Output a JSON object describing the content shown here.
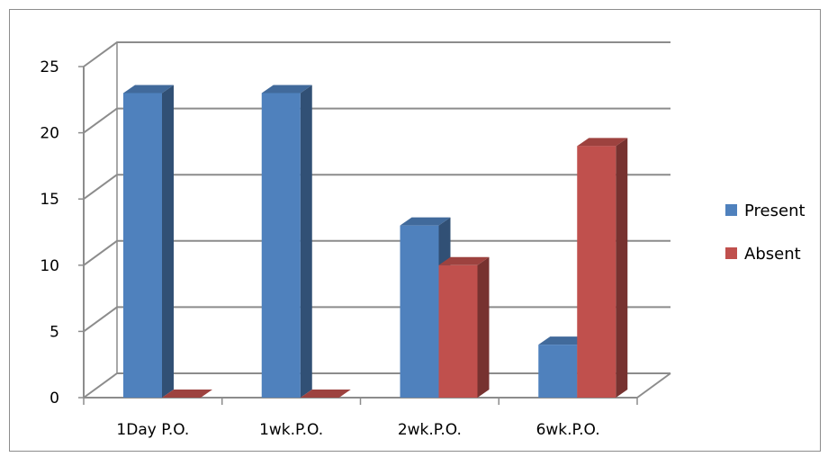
{
  "chart_data": {
    "type": "bar",
    "title": "",
    "xlabel": "",
    "ylabel": "",
    "categories": [
      "1Day P.O.",
      "1wk.P.O.",
      "2wk.P.O.",
      "6wk.P.O."
    ],
    "series": [
      {
        "name": "Present",
        "values": [
          23,
          23,
          13,
          4
        ],
        "color": "#4f81bd"
      },
      {
        "name": "Absent",
        "values": [
          0,
          0,
          10,
          19
        ],
        "color": "#c0504d"
      }
    ],
    "ylim": [
      0,
      25
    ],
    "yticks": [
      0,
      5,
      10,
      15,
      20,
      25
    ],
    "grid": true,
    "style": "3d-clustered",
    "legend": "right"
  }
}
